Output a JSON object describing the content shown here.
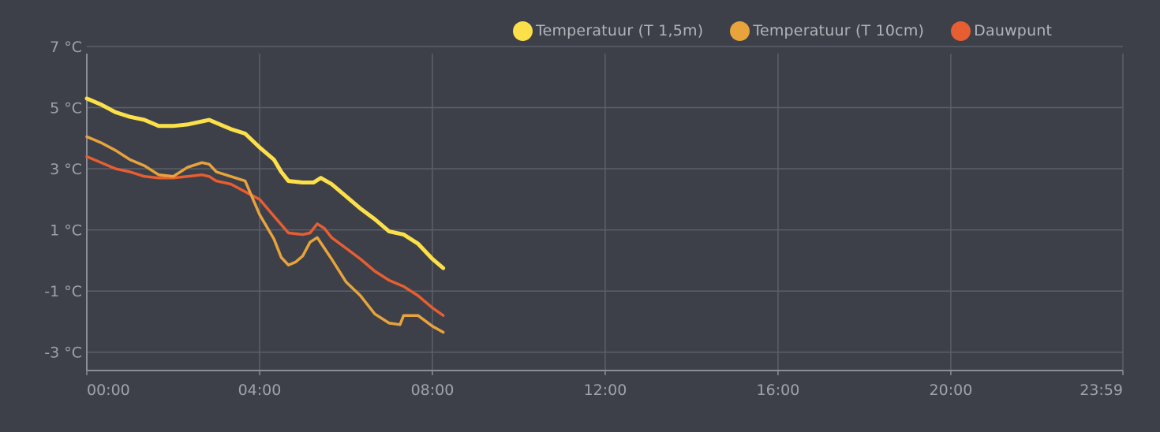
{
  "chart_data": {
    "type": "line",
    "x_ticks": [
      "00:00",
      "04:00",
      "08:00",
      "12:00",
      "16:00",
      "20:00",
      "23:59"
    ],
    "y_ticks": [
      "7 °C",
      "5 °C",
      "3 °C",
      "1 °C",
      "-1 °C",
      "-3 °C"
    ],
    "ylim": [
      -3.6,
      7
    ],
    "xlim": [
      "00:00",
      "23:59"
    ],
    "grid": true,
    "legend_position": "top-right",
    "series": [
      {
        "name": "Temperatuur (T 1,5m)",
        "color": "#fce04a",
        "x": [
          "00:00",
          "00:20",
          "00:40",
          "01:00",
          "01:20",
          "01:40",
          "02:00",
          "02:20",
          "02:40",
          "02:50",
          "03:00",
          "03:20",
          "03:40",
          "04:00",
          "04:20",
          "04:30",
          "04:40",
          "05:00",
          "05:15",
          "05:25",
          "05:40",
          "06:00",
          "06:20",
          "06:40",
          "07:00",
          "07:20",
          "07:40",
          "08:00",
          "08:15"
        ],
        "values": [
          5.3,
          5.1,
          4.85,
          4.7,
          4.6,
          4.4,
          4.4,
          4.45,
          4.55,
          4.6,
          4.5,
          4.3,
          4.15,
          3.7,
          3.3,
          2.9,
          2.6,
          2.55,
          2.55,
          2.7,
          2.5,
          2.1,
          1.7,
          1.35,
          0.95,
          0.85,
          0.55,
          0.05,
          -0.25
        ]
      },
      {
        "name": "Temperatuur (T 10cm)",
        "color": "#e8a33c",
        "x": [
          "00:00",
          "00:20",
          "00:40",
          "01:00",
          "01:20",
          "01:40",
          "02:00",
          "02:20",
          "02:40",
          "02:50",
          "03:00",
          "03:20",
          "03:40",
          "04:00",
          "04:20",
          "04:30",
          "04:40",
          "04:50",
          "05:00",
          "05:10",
          "05:20",
          "05:30",
          "05:40",
          "06:00",
          "06:20",
          "06:40",
          "07:00",
          "07:15",
          "07:20",
          "07:40",
          "08:00",
          "08:15"
        ],
        "values": [
          4.05,
          3.85,
          3.6,
          3.3,
          3.1,
          2.8,
          2.75,
          3.05,
          3.2,
          3.15,
          2.9,
          2.75,
          2.6,
          1.5,
          0.7,
          0.1,
          -0.15,
          -0.05,
          0.15,
          0.6,
          0.75,
          0.4,
          0.05,
          -0.7,
          -1.15,
          -1.75,
          -2.05,
          -2.1,
          -1.8,
          -1.8,
          -2.15,
          -2.35
        ]
      },
      {
        "name": "Dauwpunt",
        "color": "#e65e31",
        "x": [
          "00:00",
          "00:20",
          "00:40",
          "01:00",
          "01:20",
          "01:40",
          "02:00",
          "02:20",
          "02:40",
          "02:50",
          "03:00",
          "03:20",
          "03:40",
          "04:00",
          "04:20",
          "04:40",
          "05:00",
          "05:10",
          "05:20",
          "05:30",
          "05:40",
          "06:00",
          "06:20",
          "06:40",
          "07:00",
          "07:20",
          "07:40",
          "08:00",
          "08:15"
        ],
        "values": [
          3.4,
          3.2,
          3.0,
          2.9,
          2.75,
          2.7,
          2.7,
          2.75,
          2.8,
          2.75,
          2.6,
          2.5,
          2.25,
          2.0,
          1.45,
          0.9,
          0.85,
          0.9,
          1.2,
          1.05,
          0.75,
          0.4,
          0.05,
          -0.35,
          -0.65,
          -0.85,
          -1.15,
          -1.55,
          -1.8
        ]
      }
    ]
  }
}
